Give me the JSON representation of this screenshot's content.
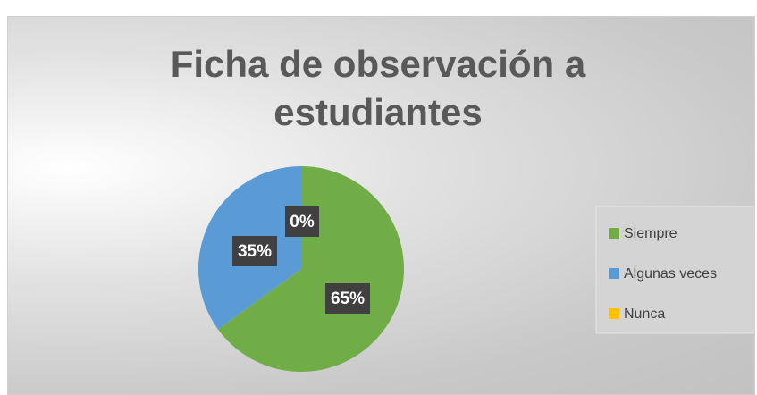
{
  "chart_data": {
    "type": "pie",
    "title": "Ficha de observación a estudiantes",
    "categories": [
      "Siempre",
      "Algunas veces",
      "Nunca"
    ],
    "values": [
      65,
      35,
      0
    ],
    "value_labels": [
      "65%",
      "35%",
      "0%"
    ],
    "colors": [
      "#70ad47",
      "#5b9bd5",
      "#ffc000"
    ],
    "legend": "right"
  }
}
